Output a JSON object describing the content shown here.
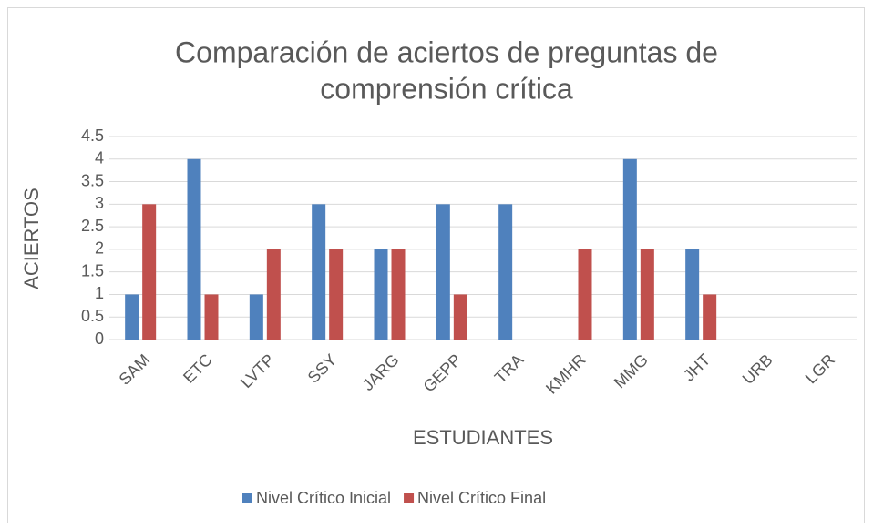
{
  "chart_data": {
    "type": "bar",
    "title": "Comparación de aciertos de preguntas de comprensión crítica",
    "title_lines": [
      "Comparación de aciertos de preguntas de",
      "comprensión crítica"
    ],
    "x_label": "ESTUDIANTES",
    "y_label": "ACIERTOS",
    "categories": [
      "SAM",
      "ETC",
      "LVTP",
      "SSY",
      "JARG",
      "GEPP",
      "TRA",
      "KMHR",
      "MMG",
      "JHT",
      "URB",
      "LGR"
    ],
    "series": [
      {
        "name": "Nivel Crítico Inicial",
        "color": "#4f81bd",
        "values": [
          1,
          4,
          1,
          3,
          2,
          3,
          3,
          0,
          4,
          2,
          0,
          0
        ]
      },
      {
        "name": "Nivel Crítico Final",
        "color": "#c0504d",
        "values": [
          3,
          1,
          2,
          2,
          2,
          1,
          0,
          2,
          2,
          1,
          0,
          0
        ]
      }
    ],
    "ylim": [
      0,
      4.5
    ],
    "yticks": [
      0,
      0.5,
      1,
      1.5,
      2,
      2.5,
      3,
      3.5,
      4,
      4.5
    ],
    "grid": true,
    "legend": "bottom"
  }
}
